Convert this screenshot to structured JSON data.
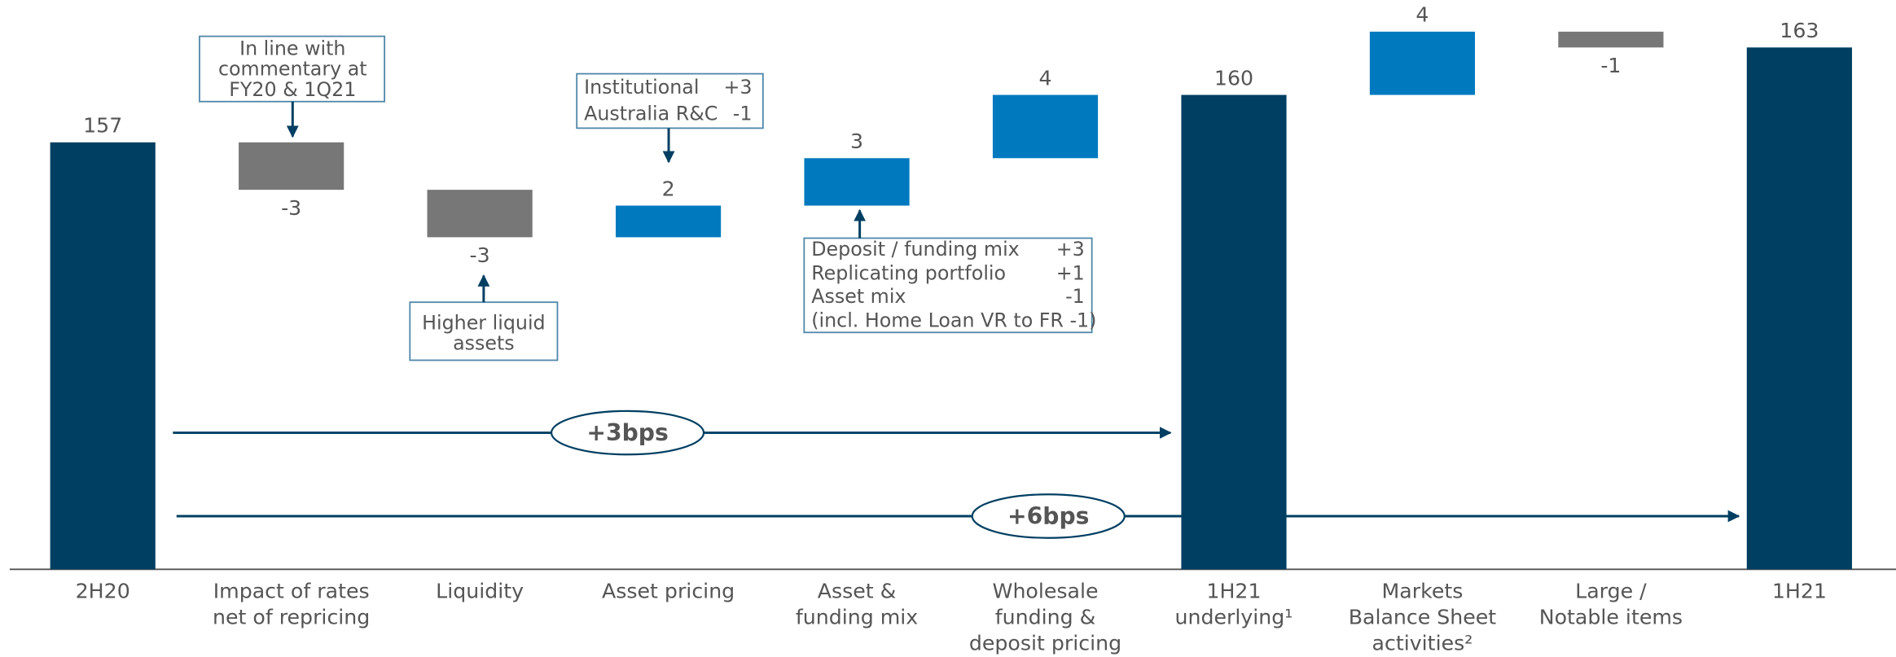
{
  "chart_data": {
    "type": "waterfall",
    "categories": [
      "2H20",
      "Impact of rates\nnet of repricing",
      "Liquidity",
      "Asset pricing",
      "Asset &\nfunding mix",
      "Wholesale\nfunding &\ndeposit pricing",
      "1H21\nunderlying¹",
      "Markets\nBalance Sheet\nactivities²",
      "Large /\nNotable items",
      "1H21"
    ],
    "values": [
      157,
      -3,
      -3,
      2,
      3,
      4,
      160,
      4,
      -1,
      163
    ],
    "measure": [
      "absolute",
      "relative",
      "relative",
      "relative",
      "relative",
      "relative",
      "absolute",
      "relative",
      "relative",
      "absolute"
    ],
    "colors": {
      "absolute": "#003f62",
      "increase": "#0079bf",
      "decrease": "#777777"
    },
    "ylim": [
      130,
      166
    ],
    "annotations": {
      "callouts": [
        {
          "lines": [
            "In line with",
            "commentary at",
            "FY20 & 1Q21"
          ]
        },
        {
          "rows": [
            [
              "Institutional",
              "+3"
            ],
            [
              "Australia R&C",
              "-1"
            ]
          ]
        },
        {
          "lines": [
            "Higher liquid",
            "assets"
          ]
        },
        {
          "rows": [
            [
              "Deposit / funding mix",
              "+3"
            ],
            [
              "Replicating portfolio",
              "+1"
            ],
            [
              "Asset mix",
              "-1"
            ],
            [
              "(incl. Home Loan VR to FR -1)"
            ]
          ]
        }
      ],
      "brackets": [
        {
          "label": "+3bps"
        },
        {
          "label": "+6bps"
        }
      ]
    }
  }
}
